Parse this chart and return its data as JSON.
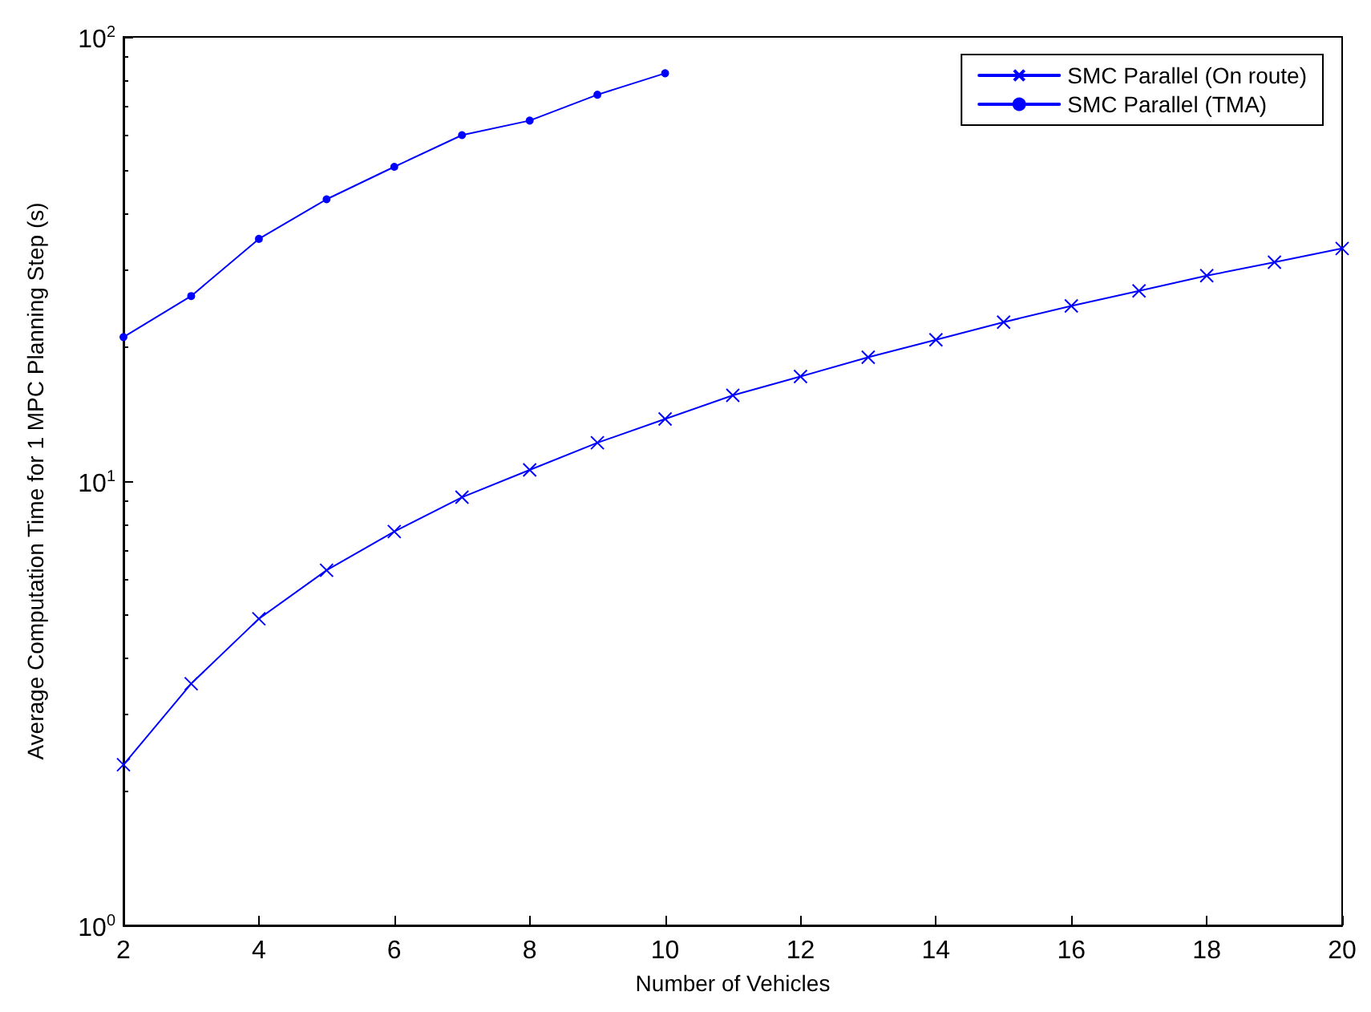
{
  "chart_data": {
    "type": "line",
    "xlabel": "Number of Vehicles",
    "ylabel": "Average Computation Time for 1 MPC Planning Step (s)",
    "x": [
      2,
      3,
      4,
      5,
      6,
      7,
      8,
      9,
      10,
      11,
      12,
      13,
      14,
      15,
      16,
      17,
      18,
      19,
      20
    ],
    "series": [
      {
        "name": "SMC Parallel (On route)",
        "color": "#0000ff",
        "marker": "cross",
        "values": [
          2.3,
          3.5,
          4.9,
          6.3,
          7.7,
          9.2,
          10.6,
          12.2,
          13.8,
          15.6,
          17.2,
          19.0,
          20.8,
          22.8,
          24.8,
          26.8,
          29.0,
          31.1,
          33.4
        ]
      },
      {
        "name": "SMC Parallel (TMA)",
        "color": "#0000ff",
        "marker": "circle",
        "x": [
          2,
          3,
          4,
          5,
          6,
          7,
          8,
          9,
          10
        ],
        "values": [
          21.1,
          26.1,
          35.1,
          43.1,
          51.0,
          60.1,
          64.8,
          74.1,
          82.8
        ]
      }
    ],
    "xlim": [
      2,
      20
    ],
    "xticks": [
      2,
      4,
      6,
      8,
      10,
      12,
      14,
      16,
      18,
      20
    ],
    "ylim": [
      1,
      100
    ],
    "yticks": [
      {
        "value": 1,
        "label": "10$^{0}$"
      },
      {
        "value": 10,
        "label": "10$^{1}$"
      },
      {
        "value": 100,
        "label": "10$^{2}$"
      }
    ],
    "log": "y",
    "grid": false,
    "legend": "top right",
    "line_style": "solid"
  }
}
